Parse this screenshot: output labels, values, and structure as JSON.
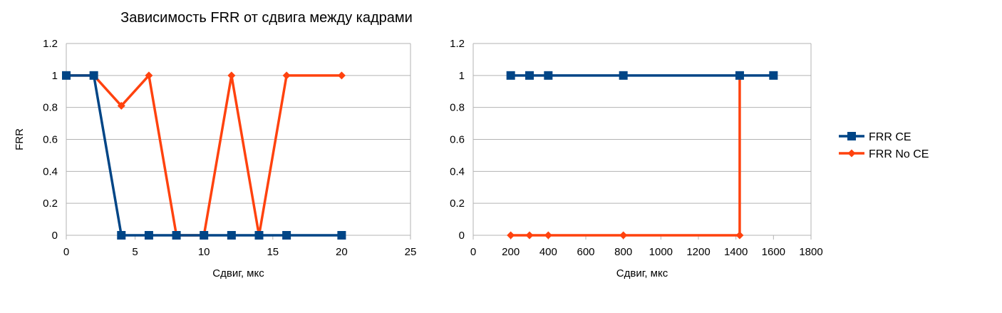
{
  "title": "Зависимость FRR от сдвига между кадрами",
  "colors": {
    "FRR CE": "#004586",
    "FRR No CE": "#ff420e",
    "grid": "#b3b3b3"
  },
  "legend": {
    "position": "right",
    "entries": [
      "FRR CE",
      "FRR No CE"
    ]
  },
  "chart_data": [
    {
      "type": "line",
      "title": "Зависимость FRR от сдвига между кадрами",
      "xlabel": "Сдвиг, мкс",
      "ylabel": "FRR",
      "xlim": [
        0,
        25
      ],
      "ylim": [
        0,
        1.2
      ],
      "xticks": [
        "0",
        "5",
        "10",
        "15",
        "20",
        "25"
      ],
      "yticks": [
        "0",
        "0.2",
        "0.4",
        "0.6",
        "0.8",
        "1",
        "1.2"
      ],
      "grid": true,
      "series": [
        {
          "name": "FRR CE",
          "marker": "square",
          "x": [
            0,
            2,
            4,
            6,
            8,
            10,
            12,
            14,
            16,
            20
          ],
          "y": [
            1,
            1,
            0,
            0,
            0,
            0,
            0,
            0,
            0,
            0
          ]
        },
        {
          "name": "FRR No CE",
          "marker": "diamond",
          "x": [
            0,
            2,
            4,
            6,
            8,
            10,
            12,
            14,
            16,
            20
          ],
          "y": [
            1,
            1,
            0.81,
            1,
            0,
            0,
            1,
            0,
            1,
            1
          ]
        }
      ]
    },
    {
      "type": "line",
      "title": "",
      "xlabel": "Сдвиг, мкс",
      "ylabel": "",
      "xlim": [
        0,
        1800
      ],
      "ylim": [
        0,
        1.2
      ],
      "xticks": [
        "0",
        "200",
        "400",
        "600",
        "800",
        "1000",
        "1200",
        "1400",
        "1600",
        "1800"
      ],
      "yticks": [
        "0",
        "0.2",
        "0.4",
        "0.6",
        "0.8",
        "1",
        "1.2"
      ],
      "grid": true,
      "series": [
        {
          "name": "FRR CE",
          "marker": "square",
          "x": [
            200,
            300,
            400,
            800,
            1420,
            1600
          ],
          "y": [
            1,
            1,
            1,
            1,
            1,
            1
          ]
        },
        {
          "name": "FRR No CE",
          "marker": "diamond",
          "x": [
            200,
            300,
            400,
            800,
            1420,
            1420
          ],
          "y": [
            0,
            0,
            0,
            0,
            0,
            1
          ]
        }
      ]
    }
  ]
}
